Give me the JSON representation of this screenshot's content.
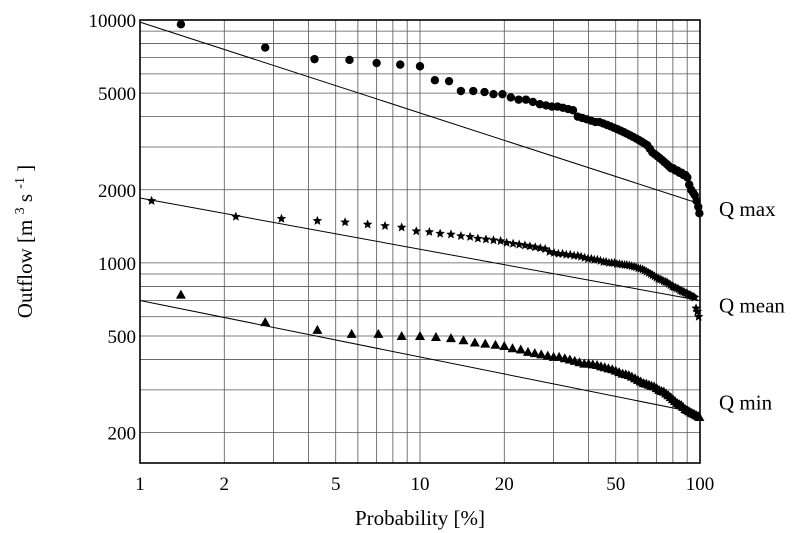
{
  "chart_data": {
    "type": "scatter",
    "title": "",
    "x_scale": "log",
    "y_scale": "log",
    "xlabel": "Probability [%]",
    "ylabel_parts": {
      "pre": "Outflow [m",
      "sup1": "3",
      "mid": " s",
      "sup2": "-1",
      "post": "]"
    },
    "xlim": [
      1,
      100
    ],
    "ylim": [
      150,
      10000
    ],
    "x_tick_labels": [
      "1",
      "2",
      "5",
      "10",
      "20",
      "50",
      "100"
    ],
    "x_ticks": [
      1,
      2,
      5,
      10,
      20,
      50,
      100
    ],
    "y_tick_labels": [
      "200",
      "500",
      "1000",
      "2000",
      "5000",
      "10000"
    ],
    "y_ticks": [
      200,
      500,
      1000,
      2000,
      5000,
      10000
    ],
    "grid": true,
    "series": [
      {
        "name": "Q max",
        "marker": "circle",
        "points": [
          [
            1.4,
            9600
          ],
          [
            2.8,
            7700
          ],
          [
            4.2,
            6900
          ],
          [
            5.6,
            6850
          ],
          [
            7.0,
            6650
          ],
          [
            8.5,
            6550
          ],
          [
            10.0,
            6450
          ],
          [
            11.3,
            5650
          ],
          [
            12.7,
            5600
          ],
          [
            14.0,
            5100
          ],
          [
            15.5,
            5100
          ],
          [
            17.0,
            5050
          ],
          [
            18.3,
            4950
          ],
          [
            19.7,
            4950
          ],
          [
            21.1,
            4800
          ],
          [
            22.5,
            4700
          ],
          [
            23.9,
            4700
          ],
          [
            25.3,
            4600
          ],
          [
            26.8,
            4500
          ],
          [
            28.2,
            4450
          ],
          [
            29.6,
            4400
          ],
          [
            31.0,
            4400
          ],
          [
            32.4,
            4350
          ],
          [
            33.8,
            4300
          ],
          [
            35.2,
            4250
          ],
          [
            36.6,
            4000
          ],
          [
            38.0,
            3950
          ],
          [
            39.4,
            3900
          ],
          [
            40.8,
            3850
          ],
          [
            42.3,
            3800
          ],
          [
            43.7,
            3800
          ],
          [
            45.1,
            3750
          ],
          [
            46.5,
            3700
          ],
          [
            47.9,
            3650
          ],
          [
            49.3,
            3600
          ],
          [
            50.7,
            3550
          ],
          [
            52.1,
            3500
          ],
          [
            53.5,
            3450
          ],
          [
            54.9,
            3400
          ],
          [
            56.3,
            3350
          ],
          [
            57.7,
            3300
          ],
          [
            59.2,
            3250
          ],
          [
            60.6,
            3200
          ],
          [
            62.0,
            3150
          ],
          [
            63.4,
            3100
          ],
          [
            64.8,
            3050
          ],
          [
            66.2,
            2950
          ],
          [
            67.6,
            2850
          ],
          [
            69.0,
            2800
          ],
          [
            70.4,
            2750
          ],
          [
            71.8,
            2700
          ],
          [
            73.2,
            2650
          ],
          [
            74.6,
            2600
          ],
          [
            76.1,
            2550
          ],
          [
            77.5,
            2500
          ],
          [
            78.9,
            2450
          ],
          [
            80.3,
            2450
          ],
          [
            81.7,
            2400
          ],
          [
            83.1,
            2400
          ],
          [
            84.5,
            2350
          ],
          [
            85.9,
            2350
          ],
          [
            87.3,
            2300
          ],
          [
            88.7,
            2300
          ],
          [
            90.1,
            2250
          ],
          [
            91.5,
            2100
          ],
          [
            93.0,
            2000
          ],
          [
            94.4,
            1950
          ],
          [
            95.8,
            1900
          ],
          [
            97.2,
            1800
          ],
          [
            98.6,
            1700
          ],
          [
            99.5,
            1600
          ]
        ],
        "fit_line": [
          [
            1,
            9800
          ],
          [
            100,
            1750
          ]
        ]
      },
      {
        "name": "Q mean",
        "marker": "star",
        "points": [
          [
            1.1,
            1800
          ],
          [
            2.2,
            1550
          ],
          [
            3.2,
            1520
          ],
          [
            4.3,
            1490
          ],
          [
            5.4,
            1470
          ],
          [
            6.5,
            1440
          ],
          [
            7.5,
            1420
          ],
          [
            8.6,
            1400
          ],
          [
            9.7,
            1350
          ],
          [
            10.8,
            1340
          ],
          [
            11.8,
            1320
          ],
          [
            12.9,
            1310
          ],
          [
            14.0,
            1290
          ],
          [
            15.1,
            1280
          ],
          [
            16.1,
            1260
          ],
          [
            17.2,
            1250
          ],
          [
            18.3,
            1240
          ],
          [
            19.4,
            1230
          ],
          [
            20.4,
            1210
          ],
          [
            21.5,
            1200
          ],
          [
            22.6,
            1190
          ],
          [
            23.7,
            1180
          ],
          [
            24.7,
            1170
          ],
          [
            25.8,
            1160
          ],
          [
            26.9,
            1150
          ],
          [
            28.0,
            1140
          ],
          [
            29.0,
            1110
          ],
          [
            30.1,
            1100
          ],
          [
            31.2,
            1090
          ],
          [
            32.3,
            1090
          ],
          [
            33.3,
            1080
          ],
          [
            34.4,
            1080
          ],
          [
            35.5,
            1070
          ],
          [
            36.6,
            1070
          ],
          [
            37.6,
            1060
          ],
          [
            38.7,
            1050
          ],
          [
            39.8,
            1040
          ],
          [
            40.9,
            1040
          ],
          [
            41.9,
            1030
          ],
          [
            43.0,
            1030
          ],
          [
            44.1,
            1020
          ],
          [
            45.2,
            1010
          ],
          [
            46.2,
            1010
          ],
          [
            47.3,
            1000
          ],
          [
            48.4,
            1000
          ],
          [
            49.5,
            1000
          ],
          [
            50.5,
            990
          ],
          [
            51.6,
            990
          ],
          [
            52.7,
            985
          ],
          [
            53.8,
            980
          ],
          [
            54.8,
            980
          ],
          [
            55.9,
            975
          ],
          [
            57.0,
            970
          ],
          [
            58.1,
            965
          ],
          [
            59.1,
            960
          ],
          [
            60.2,
            950
          ],
          [
            61.3,
            945
          ],
          [
            62.4,
            940
          ],
          [
            63.4,
            930
          ],
          [
            64.5,
            920
          ],
          [
            65.6,
            910
          ],
          [
            66.7,
            900
          ],
          [
            67.7,
            890
          ],
          [
            68.8,
            880
          ],
          [
            69.9,
            870
          ],
          [
            71.0,
            860
          ],
          [
            72.0,
            855
          ],
          [
            73.1,
            850
          ],
          [
            74.2,
            840
          ],
          [
            75.3,
            835
          ],
          [
            76.3,
            830
          ],
          [
            77.4,
            820
          ],
          [
            78.5,
            810
          ],
          [
            79.6,
            800
          ],
          [
            80.6,
            795
          ],
          [
            81.7,
            790
          ],
          [
            82.8,
            785
          ],
          [
            83.9,
            780
          ],
          [
            84.9,
            770
          ],
          [
            86.0,
            765
          ],
          [
            87.1,
            760
          ],
          [
            88.2,
            755
          ],
          [
            89.2,
            750
          ],
          [
            90.3,
            745
          ],
          [
            91.4,
            740
          ],
          [
            92.5,
            735
          ],
          [
            93.5,
            730
          ],
          [
            94.6,
            725
          ],
          [
            95.7,
            720
          ],
          [
            96.8,
            650
          ],
          [
            97.8,
            630
          ],
          [
            98.9,
            600
          ]
        ],
        "fit_line": [
          [
            1,
            1850
          ],
          [
            100,
            700
          ]
        ]
      },
      {
        "name": "Q min",
        "marker": "triangle",
        "points": [
          [
            1.4,
            740
          ],
          [
            2.8,
            570
          ],
          [
            4.3,
            530
          ],
          [
            5.7,
            510
          ],
          [
            7.1,
            510
          ],
          [
            8.6,
            500
          ],
          [
            10.0,
            500
          ],
          [
            11.4,
            495
          ],
          [
            12.9,
            490
          ],
          [
            14.3,
            480
          ],
          [
            15.7,
            470
          ],
          [
            17.1,
            465
          ],
          [
            18.6,
            460
          ],
          [
            20.0,
            455
          ],
          [
            21.4,
            445
          ],
          [
            22.9,
            440
          ],
          [
            24.3,
            430
          ],
          [
            25.7,
            425
          ],
          [
            27.1,
            420
          ],
          [
            28.6,
            415
          ],
          [
            30.0,
            410
          ],
          [
            31.4,
            410
          ],
          [
            32.9,
            405
          ],
          [
            34.3,
            400
          ],
          [
            35.7,
            395
          ],
          [
            37.1,
            390
          ],
          [
            38.6,
            385
          ],
          [
            40.0,
            385
          ],
          [
            41.4,
            382
          ],
          [
            42.9,
            380
          ],
          [
            44.3,
            375
          ],
          [
            45.7,
            372
          ],
          [
            47.1,
            368
          ],
          [
            48.6,
            365
          ],
          [
            50.0,
            360
          ],
          [
            51.4,
            355
          ],
          [
            52.9,
            350
          ],
          [
            54.3,
            348
          ],
          [
            55.7,
            345
          ],
          [
            57.1,
            340
          ],
          [
            58.6,
            335
          ],
          [
            60.0,
            330
          ],
          [
            61.4,
            325
          ],
          [
            62.9,
            320
          ],
          [
            64.3,
            318
          ],
          [
            65.7,
            315
          ],
          [
            67.1,
            312
          ],
          [
            68.6,
            310
          ],
          [
            70.0,
            305
          ],
          [
            71.4,
            300
          ],
          [
            72.9,
            297
          ],
          [
            74.3,
            295
          ],
          [
            75.7,
            290
          ],
          [
            77.1,
            285
          ],
          [
            78.6,
            280
          ],
          [
            80.0,
            275
          ],
          [
            81.4,
            270
          ],
          [
            82.9,
            265
          ],
          [
            84.3,
            262
          ],
          [
            85.7,
            260
          ],
          [
            87.1,
            255
          ],
          [
            88.6,
            250
          ],
          [
            90.0,
            248
          ],
          [
            91.4,
            245
          ],
          [
            92.9,
            242
          ],
          [
            94.3,
            240
          ],
          [
            95.7,
            238
          ],
          [
            97.1,
            236
          ],
          [
            98.6,
            234
          ],
          [
            99.5,
            232
          ]
        ],
        "fit_line": [
          [
            1,
            700
          ],
          [
            100,
            240
          ]
        ]
      }
    ]
  }
}
